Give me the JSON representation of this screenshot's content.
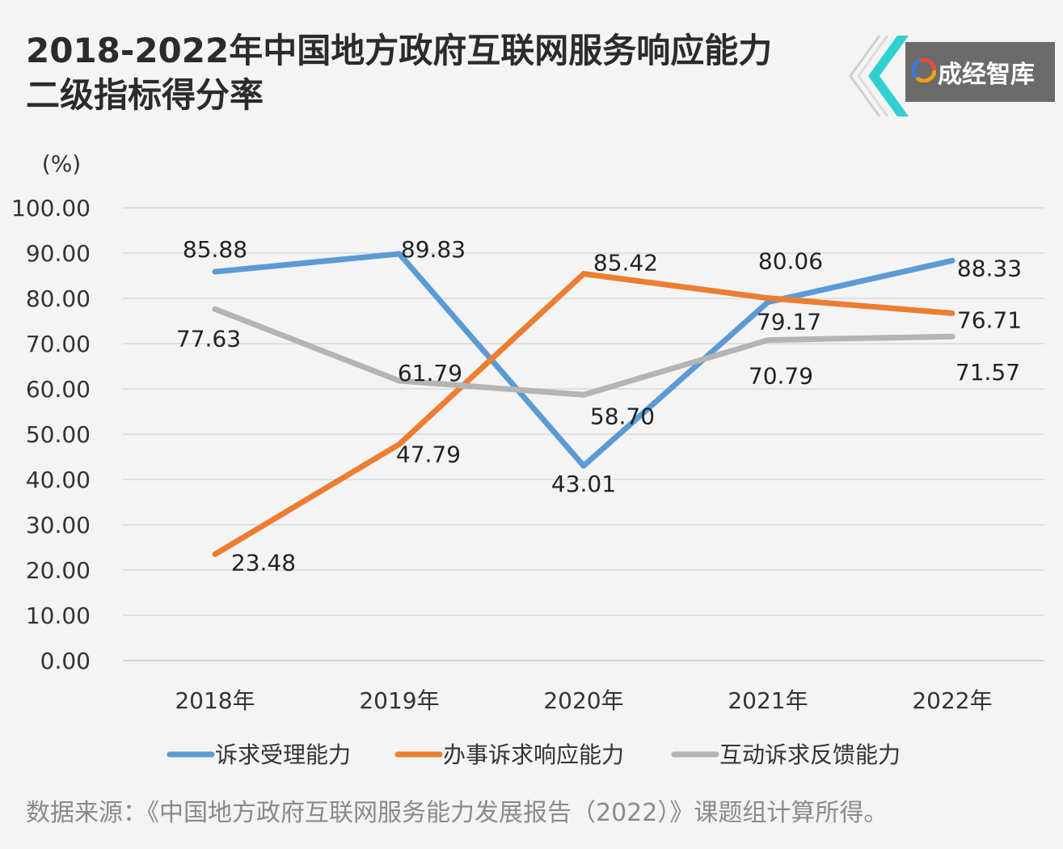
{
  "title_line1": "2018-2022年中国地方政府互联网服务响应能力",
  "title_line2": "二级指标得分率",
  "brand_name": "成经智库",
  "source_note": "数据来源：《中国地方政府互联网服务能力发展报告（2022）》课题组计算所得。",
  "chart_data": {
    "type": "line",
    "ylabel": "(%)",
    "ylim": [
      0,
      100
    ],
    "ytick_step": 10,
    "ytick_labels": [
      "0.00",
      "10.00",
      "20.00",
      "30.00",
      "40.00",
      "50.00",
      "60.00",
      "70.00",
      "80.00",
      "90.00",
      "100.00"
    ],
    "categories": [
      "2018年",
      "2019年",
      "2020年",
      "2021年",
      "2022年"
    ],
    "grid": true,
    "legend_position": "bottom",
    "series": [
      {
        "name": "诉求受理能力",
        "color": "#5b9bd5",
        "values": [
          85.88,
          89.83,
          43.01,
          79.17,
          88.33
        ],
        "labels": [
          "85.88",
          "89.83",
          "43.01",
          "79.17",
          "88.33"
        ]
      },
      {
        "name": "办事诉求响应能力",
        "color": "#ed7d31",
        "values": [
          23.48,
          47.79,
          85.42,
          80.06,
          76.71
        ],
        "labels": [
          "23.48",
          "47.79",
          "85.42",
          "80.06",
          "76.71"
        ]
      },
      {
        "name": "互动诉求反馈能力",
        "color": "#b4b4b4",
        "values": [
          77.63,
          61.79,
          58.7,
          70.79,
          71.57
        ],
        "labels": [
          "77.63",
          "61.79",
          "58.70",
          "70.79",
          "71.57"
        ]
      }
    ]
  }
}
